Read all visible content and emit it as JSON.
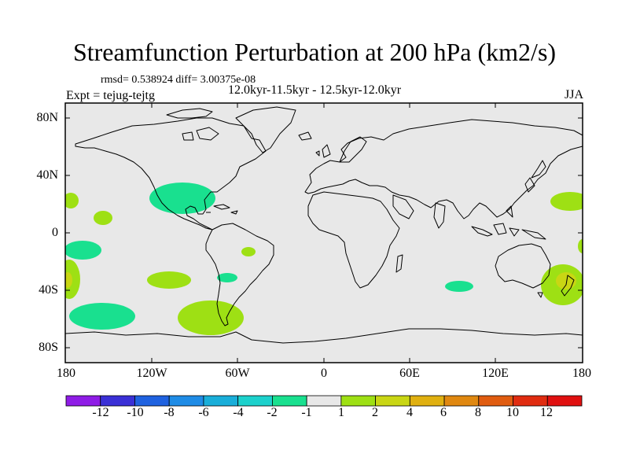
{
  "title": "Streamfunction Perturbation at 200 hPa (km2/s)",
  "stats_line": "rmsd= 0.538924 diff= 3.00375e-08",
  "period_line": "12.0kyr-11.5kyr - 12.5kyr-12.0kyr",
  "experiment": "Expt = tejug-tejtg",
  "season": "JJA",
  "y_axis_labels": [
    "80N",
    "40N",
    "0",
    "40S",
    "80S"
  ],
  "x_axis_labels": [
    "180",
    "120W",
    "60W",
    "0",
    "60E",
    "120E",
    "180"
  ],
  "colorbar": {
    "labels": [
      "-12",
      "-10",
      "-8",
      "-6",
      "-4",
      "-2",
      "-1",
      "1",
      "2",
      "4",
      "6",
      "8",
      "10",
      "12"
    ],
    "colors": [
      "#8f1ce6",
      "#3a30d6",
      "#1f62e0",
      "#1f8ce6",
      "#19aed9",
      "#1cd1cc",
      "#19e08f",
      "#e8e8e8",
      "#9ee014",
      "#c9d614",
      "#e0b010",
      "#e08810",
      "#e05c10",
      "#e02c10",
      "#e01010"
    ]
  },
  "colors": {
    "land_ocean": "#e8e8e8",
    "neg_small": "#19e08f",
    "pos_small": "#9ee014",
    "pos_mid": "#c9d614"
  }
}
